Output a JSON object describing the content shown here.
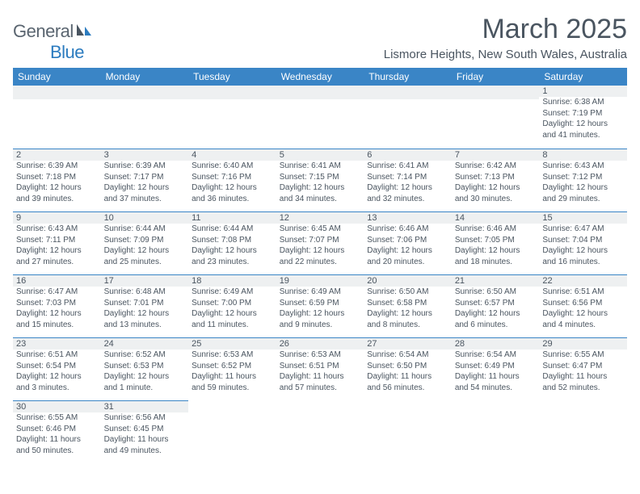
{
  "logo": {
    "text1": "General",
    "text2": "Blue"
  },
  "title": "March 2025",
  "subtitle": "Lismore Heights, New South Wales, Australia",
  "colors": {
    "header_bg": "#3a85c6",
    "header_text": "#ffffff",
    "daynum_bg": "#eef0f1",
    "rule": "#3a85c6",
    "body_text": "#4a5560",
    "logo_gray": "#5a6570",
    "logo_blue": "#2b7bbf"
  },
  "weekdays": [
    "Sunday",
    "Monday",
    "Tuesday",
    "Wednesday",
    "Thursday",
    "Friday",
    "Saturday"
  ],
  "weeks": [
    [
      null,
      null,
      null,
      null,
      null,
      null,
      {
        "n": "1",
        "sr": "Sunrise: 6:38 AM",
        "ss": "Sunset: 7:19 PM",
        "d1": "Daylight: 12 hours",
        "d2": "and 41 minutes."
      }
    ],
    [
      {
        "n": "2",
        "sr": "Sunrise: 6:39 AM",
        "ss": "Sunset: 7:18 PM",
        "d1": "Daylight: 12 hours",
        "d2": "and 39 minutes."
      },
      {
        "n": "3",
        "sr": "Sunrise: 6:39 AM",
        "ss": "Sunset: 7:17 PM",
        "d1": "Daylight: 12 hours",
        "d2": "and 37 minutes."
      },
      {
        "n": "4",
        "sr": "Sunrise: 6:40 AM",
        "ss": "Sunset: 7:16 PM",
        "d1": "Daylight: 12 hours",
        "d2": "and 36 minutes."
      },
      {
        "n": "5",
        "sr": "Sunrise: 6:41 AM",
        "ss": "Sunset: 7:15 PM",
        "d1": "Daylight: 12 hours",
        "d2": "and 34 minutes."
      },
      {
        "n": "6",
        "sr": "Sunrise: 6:41 AM",
        "ss": "Sunset: 7:14 PM",
        "d1": "Daylight: 12 hours",
        "d2": "and 32 minutes."
      },
      {
        "n": "7",
        "sr": "Sunrise: 6:42 AM",
        "ss": "Sunset: 7:13 PM",
        "d1": "Daylight: 12 hours",
        "d2": "and 30 minutes."
      },
      {
        "n": "8",
        "sr": "Sunrise: 6:43 AM",
        "ss": "Sunset: 7:12 PM",
        "d1": "Daylight: 12 hours",
        "d2": "and 29 minutes."
      }
    ],
    [
      {
        "n": "9",
        "sr": "Sunrise: 6:43 AM",
        "ss": "Sunset: 7:11 PM",
        "d1": "Daylight: 12 hours",
        "d2": "and 27 minutes."
      },
      {
        "n": "10",
        "sr": "Sunrise: 6:44 AM",
        "ss": "Sunset: 7:09 PM",
        "d1": "Daylight: 12 hours",
        "d2": "and 25 minutes."
      },
      {
        "n": "11",
        "sr": "Sunrise: 6:44 AM",
        "ss": "Sunset: 7:08 PM",
        "d1": "Daylight: 12 hours",
        "d2": "and 23 minutes."
      },
      {
        "n": "12",
        "sr": "Sunrise: 6:45 AM",
        "ss": "Sunset: 7:07 PM",
        "d1": "Daylight: 12 hours",
        "d2": "and 22 minutes."
      },
      {
        "n": "13",
        "sr": "Sunrise: 6:46 AM",
        "ss": "Sunset: 7:06 PM",
        "d1": "Daylight: 12 hours",
        "d2": "and 20 minutes."
      },
      {
        "n": "14",
        "sr": "Sunrise: 6:46 AM",
        "ss": "Sunset: 7:05 PM",
        "d1": "Daylight: 12 hours",
        "d2": "and 18 minutes."
      },
      {
        "n": "15",
        "sr": "Sunrise: 6:47 AM",
        "ss": "Sunset: 7:04 PM",
        "d1": "Daylight: 12 hours",
        "d2": "and 16 minutes."
      }
    ],
    [
      {
        "n": "16",
        "sr": "Sunrise: 6:47 AM",
        "ss": "Sunset: 7:03 PM",
        "d1": "Daylight: 12 hours",
        "d2": "and 15 minutes."
      },
      {
        "n": "17",
        "sr": "Sunrise: 6:48 AM",
        "ss": "Sunset: 7:01 PM",
        "d1": "Daylight: 12 hours",
        "d2": "and 13 minutes."
      },
      {
        "n": "18",
        "sr": "Sunrise: 6:49 AM",
        "ss": "Sunset: 7:00 PM",
        "d1": "Daylight: 12 hours",
        "d2": "and 11 minutes."
      },
      {
        "n": "19",
        "sr": "Sunrise: 6:49 AM",
        "ss": "Sunset: 6:59 PM",
        "d1": "Daylight: 12 hours",
        "d2": "and 9 minutes."
      },
      {
        "n": "20",
        "sr": "Sunrise: 6:50 AM",
        "ss": "Sunset: 6:58 PM",
        "d1": "Daylight: 12 hours",
        "d2": "and 8 minutes."
      },
      {
        "n": "21",
        "sr": "Sunrise: 6:50 AM",
        "ss": "Sunset: 6:57 PM",
        "d1": "Daylight: 12 hours",
        "d2": "and 6 minutes."
      },
      {
        "n": "22",
        "sr": "Sunrise: 6:51 AM",
        "ss": "Sunset: 6:56 PM",
        "d1": "Daylight: 12 hours",
        "d2": "and 4 minutes."
      }
    ],
    [
      {
        "n": "23",
        "sr": "Sunrise: 6:51 AM",
        "ss": "Sunset: 6:54 PM",
        "d1": "Daylight: 12 hours",
        "d2": "and 3 minutes."
      },
      {
        "n": "24",
        "sr": "Sunrise: 6:52 AM",
        "ss": "Sunset: 6:53 PM",
        "d1": "Daylight: 12 hours",
        "d2": "and 1 minute."
      },
      {
        "n": "25",
        "sr": "Sunrise: 6:53 AM",
        "ss": "Sunset: 6:52 PM",
        "d1": "Daylight: 11 hours",
        "d2": "and 59 minutes."
      },
      {
        "n": "26",
        "sr": "Sunrise: 6:53 AM",
        "ss": "Sunset: 6:51 PM",
        "d1": "Daylight: 11 hours",
        "d2": "and 57 minutes."
      },
      {
        "n": "27",
        "sr": "Sunrise: 6:54 AM",
        "ss": "Sunset: 6:50 PM",
        "d1": "Daylight: 11 hours",
        "d2": "and 56 minutes."
      },
      {
        "n": "28",
        "sr": "Sunrise: 6:54 AM",
        "ss": "Sunset: 6:49 PM",
        "d1": "Daylight: 11 hours",
        "d2": "and 54 minutes."
      },
      {
        "n": "29",
        "sr": "Sunrise: 6:55 AM",
        "ss": "Sunset: 6:47 PM",
        "d1": "Daylight: 11 hours",
        "d2": "and 52 minutes."
      }
    ],
    [
      {
        "n": "30",
        "sr": "Sunrise: 6:55 AM",
        "ss": "Sunset: 6:46 PM",
        "d1": "Daylight: 11 hours",
        "d2": "and 50 minutes."
      },
      {
        "n": "31",
        "sr": "Sunrise: 6:56 AM",
        "ss": "Sunset: 6:45 PM",
        "d1": "Daylight: 11 hours",
        "d2": "and 49 minutes."
      },
      null,
      null,
      null,
      null,
      null
    ]
  ]
}
